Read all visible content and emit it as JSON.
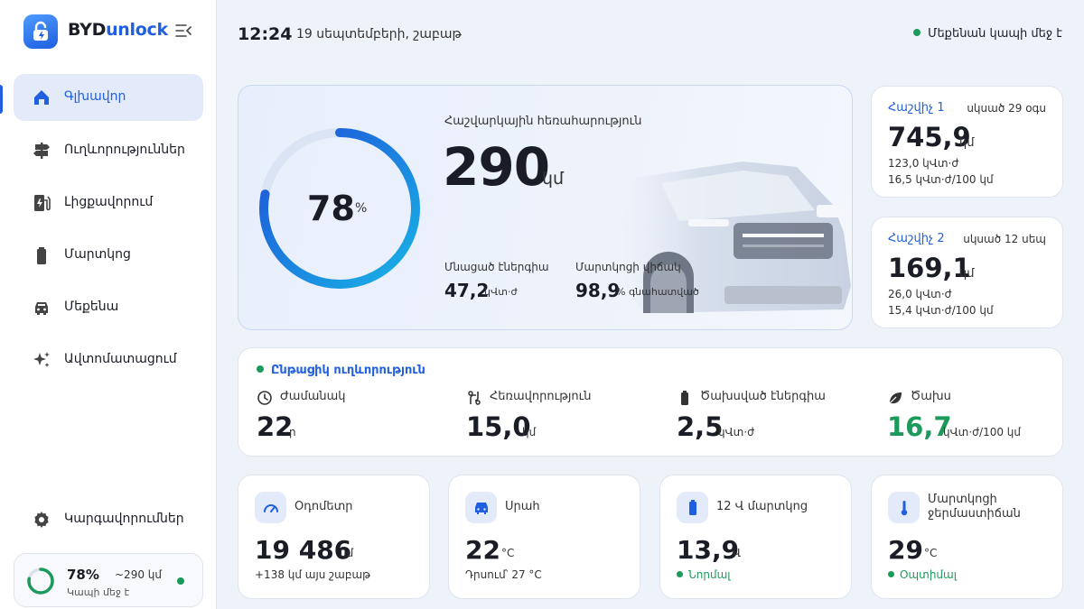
{
  "brand": {
    "name_a": "BYD",
    "name_b": "unlock"
  },
  "nav": [
    {
      "label": "Գլխավոր",
      "icon": "home-icon"
    },
    {
      "label": "Ուղևորություններ",
      "icon": "signpost-icon"
    },
    {
      "label": "Լիցքավորում",
      "icon": "ev-station-icon"
    },
    {
      "label": "Մարտկոց",
      "icon": "battery-icon"
    },
    {
      "label": "Մեքենա",
      "icon": "car-icon"
    },
    {
      "label": "Ավտոմատացում",
      "icon": "sparkles-icon"
    }
  ],
  "settings_label": "Կարգավորումներ",
  "mini_status": {
    "percent": "78%",
    "range": "~290 կմ",
    "state": "Կապի մեջ է",
    "level": 0.78
  },
  "header": {
    "time": "12:24",
    "date": "19 սեպտեմբերի, շաբաթ",
    "connection": "Մեքենան կապի մեջ է"
  },
  "hero": {
    "gauge_value": "78",
    "gauge_unit": "%",
    "level": 0.78,
    "range_label": "Հաշվարկային հեռահարություն",
    "range_value": "290",
    "range_unit": "կմ",
    "energy_label": "Մնացած էներգիա",
    "energy_value": "47,2",
    "energy_unit": "կՎտ·ժ",
    "health_label": "Մարտկոցի վիճակ",
    "health_value": "98,9",
    "health_unit": "% գնահատված"
  },
  "trip1": {
    "name": "Հաշվիչ 1",
    "reset": "սկսած 29 օգս",
    "value": "745,9",
    "unit": "կմ",
    "energy": "123,0 կՎտ·ժ",
    "consumption": "16,5 կՎտ·ժ/100 կմ"
  },
  "trip2": {
    "name": "Հաշվիչ 2",
    "reset": "սկսած 12 սեպ",
    "value": "169,1",
    "unit": "կմ",
    "energy": "26,0 կՎտ·ժ",
    "consumption": "15,4 կՎտ·ժ/100 կմ"
  },
  "current": {
    "title": "Ընթացիկ ուղևորություն",
    "time_label": "Ժամանակ",
    "time_value": "22",
    "time_unit": "ր",
    "distance_label": "Հեռավորություն",
    "distance_value": "15,0",
    "distance_unit": "կմ",
    "energy_label": "Ծախսված էներգիա",
    "energy_value": "2,5",
    "energy_unit": "կՎտ·ժ",
    "consumption_label": "Ծախս",
    "consumption_value": "16,7",
    "consumption_unit": "կՎտ·ժ/100 կմ"
  },
  "stats": {
    "odometer": {
      "label": "Օդոմետր",
      "value": "19 486",
      "unit": "կմ",
      "sub": "+138 կմ այս շաբաթ"
    },
    "cabin": {
      "label": "Սրահ",
      "value": "22",
      "unit": "°C",
      "sub": "Դրսում՝ 27 °C"
    },
    "battery12": {
      "label": "12 Վ մարտկոց",
      "value": "13,9",
      "unit": "Վ",
      "sub": "Նորմալ"
    },
    "battery_temp": {
      "label_1": "Մարտկոցի",
      "label_2": "ջերմաստիճան",
      "value": "29",
      "unit": "°C",
      "sub": "Օպտիմալ"
    }
  },
  "colors": {
    "accent": "#1f5fe0",
    "ok": "#1b9a5c",
    "consumption": "#1b9a5c"
  }
}
